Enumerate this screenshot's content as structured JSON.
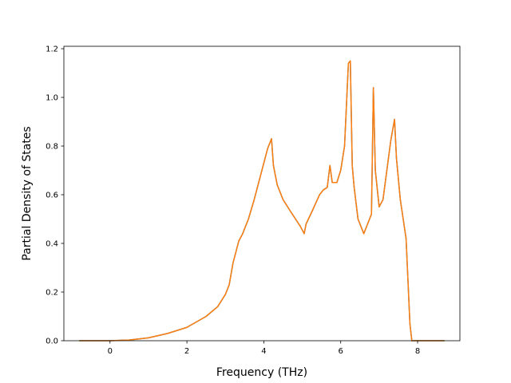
{
  "chart_data": {
    "type": "line",
    "title": "",
    "xlabel": "Frequency (THz)",
    "ylabel": "Partial Density of States",
    "xlim": [
      -1.2,
      9.1
    ],
    "ylim": [
      0.0,
      1.21
    ],
    "xticks": [
      0,
      2,
      4,
      6,
      8
    ],
    "yticks": [
      0.0,
      0.2,
      0.4,
      0.6,
      0.8,
      1.0,
      1.2
    ],
    "xtick_labels": [
      "0",
      "2",
      "4",
      "6",
      "8"
    ],
    "ytick_labels": [
      "0.0",
      "0.2",
      "0.4",
      "0.6",
      "0.8",
      "1.0",
      "1.2"
    ],
    "grid": false,
    "legend": "none",
    "series": [
      {
        "color": "#1f77b4",
        "x": [
          -0.8,
          0.0,
          0.5,
          1.0,
          1.5,
          2.0,
          2.5,
          2.8,
          3.0,
          3.1,
          3.2,
          3.35,
          3.45,
          3.6,
          3.75,
          3.9,
          4.0,
          4.1,
          4.2,
          4.25,
          4.35,
          4.5,
          4.7,
          4.95,
          5.05,
          5.1,
          5.25,
          5.45,
          5.55,
          5.65,
          5.72,
          5.78,
          5.9,
          6.0,
          6.1,
          6.15,
          6.2,
          6.25,
          6.3,
          6.35,
          6.45,
          6.6,
          6.7,
          6.8,
          6.85,
          6.9,
          7.0,
          7.1,
          7.2,
          7.3,
          7.4,
          7.45,
          7.55,
          7.7,
          7.8,
          7.85,
          7.9,
          8.1,
          8.7
        ],
        "y": [
          0.0,
          0.0,
          0.003,
          0.012,
          0.03,
          0.055,
          0.1,
          0.14,
          0.19,
          0.23,
          0.32,
          0.41,
          0.44,
          0.5,
          0.58,
          0.67,
          0.73,
          0.79,
          0.83,
          0.72,
          0.64,
          0.58,
          0.53,
          0.47,
          0.44,
          0.48,
          0.53,
          0.6,
          0.62,
          0.63,
          0.72,
          0.65,
          0.65,
          0.7,
          0.8,
          0.97,
          1.14,
          1.15,
          0.72,
          0.63,
          0.5,
          0.44,
          0.48,
          0.52,
          1.04,
          0.7,
          0.55,
          0.58,
          0.7,
          0.82,
          0.91,
          0.75,
          0.58,
          0.42,
          0.07,
          0.0,
          0.0,
          0.0,
          0.0
        ]
      },
      {
        "color": "#ff7f0e",
        "x": [
          -0.8,
          0.0,
          0.5,
          1.0,
          1.5,
          2.0,
          2.5,
          2.8,
          3.0,
          3.1,
          3.2,
          3.35,
          3.45,
          3.6,
          3.75,
          3.9,
          4.0,
          4.1,
          4.2,
          4.25,
          4.35,
          4.5,
          4.7,
          4.95,
          5.05,
          5.1,
          5.25,
          5.45,
          5.55,
          5.65,
          5.72,
          5.78,
          5.9,
          6.0,
          6.1,
          6.15,
          6.2,
          6.25,
          6.3,
          6.35,
          6.45,
          6.6,
          6.7,
          6.8,
          6.85,
          6.9,
          7.0,
          7.1,
          7.2,
          7.3,
          7.4,
          7.45,
          7.55,
          7.7,
          7.8,
          7.85,
          7.9,
          8.1,
          8.7
        ],
        "y": [
          0.0,
          0.0,
          0.003,
          0.012,
          0.03,
          0.055,
          0.1,
          0.14,
          0.19,
          0.23,
          0.32,
          0.41,
          0.44,
          0.5,
          0.58,
          0.67,
          0.73,
          0.79,
          0.83,
          0.72,
          0.64,
          0.58,
          0.53,
          0.47,
          0.44,
          0.48,
          0.53,
          0.6,
          0.62,
          0.63,
          0.72,
          0.65,
          0.65,
          0.7,
          0.8,
          0.97,
          1.14,
          1.15,
          0.72,
          0.63,
          0.5,
          0.44,
          0.48,
          0.52,
          1.04,
          0.7,
          0.55,
          0.58,
          0.7,
          0.82,
          0.91,
          0.75,
          0.58,
          0.42,
          0.07,
          0.0,
          0.0,
          0.0,
          0.0
        ]
      }
    ]
  }
}
